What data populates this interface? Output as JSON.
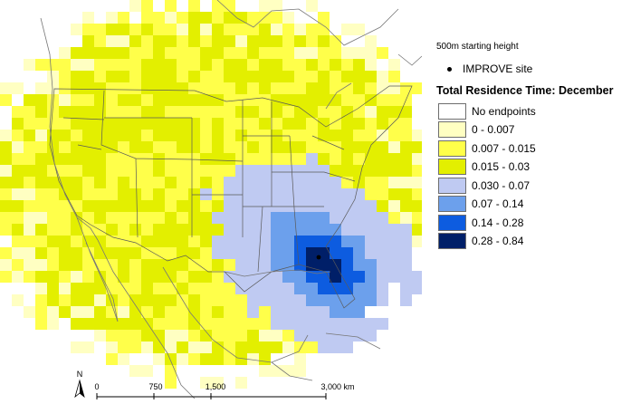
{
  "legend": {
    "subtitle": "500m starting height",
    "site_label": "IMPROVE site",
    "title": "Total Residence Time: December",
    "classes": [
      {
        "label": "No endpoints",
        "color": "#ffffff"
      },
      {
        "label": "0 - 0.007",
        "color": "#ffffc2"
      },
      {
        "label": "0.007 - 0.015",
        "color": "#ffff4a"
      },
      {
        "label": "0.015 - 0.03",
        "color": "#e3ef00"
      },
      {
        "label": "0.030 - 0.07",
        "color": "#bfcaf2"
      },
      {
        "label": "0.07 - 0.14",
        "color": "#6ca0ec"
      },
      {
        "label": "0.14 - 0.28",
        "color": "#0d5ce0"
      },
      {
        "label": "0.28 - 0.84",
        "color": "#001f68"
      }
    ]
  },
  "scale_bar": {
    "labels": [
      "0",
      "750",
      "1,500",
      "3,000 km"
    ],
    "north": "N"
  },
  "colors": {
    "boundary": "#5a5a5a",
    "coast": "#777777"
  }
}
